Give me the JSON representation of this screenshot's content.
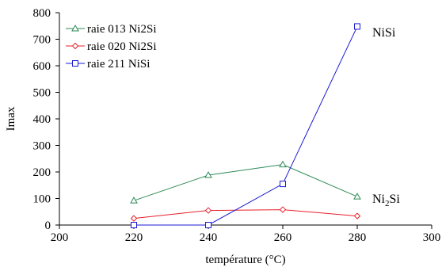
{
  "chart_data": {
    "type": "line",
    "xlabel": "température (°C)",
    "ylabel": "Imax",
    "xlim": [
      200,
      300
    ],
    "ylim": [
      0,
      800
    ],
    "xticks": [
      200,
      220,
      240,
      260,
      280,
      300
    ],
    "yticks": [
      0,
      100,
      200,
      300,
      400,
      500,
      600,
      700,
      800
    ],
    "grid": false,
    "legend_position": "top-left",
    "series": [
      {
        "name": "raie 013 Ni2Si",
        "color": "#2e8b57",
        "marker": "triangle",
        "x": [
          220,
          240,
          260,
          280
        ],
        "y": [
          92,
          188,
          228,
          107
        ]
      },
      {
        "name": "raie 020 Ni2Si",
        "color": "#e8202a",
        "marker": "diamond",
        "x": [
          220,
          240,
          260,
          280
        ],
        "y": [
          25,
          55,
          58,
          34
        ]
      },
      {
        "name": "raie 211 NiSi",
        "color": "#1a1ad6",
        "marker": "square",
        "x": [
          220,
          240,
          260,
          280
        ],
        "y": [
          0,
          0,
          155,
          748
        ]
      }
    ],
    "annotations": [
      {
        "text": "NiSi",
        "x": 288,
        "y": 740
      },
      {
        "text_main": "Ni",
        "text_sub": "2",
        "text_tail": "Si",
        "x": 288,
        "y": 88
      }
    ]
  }
}
